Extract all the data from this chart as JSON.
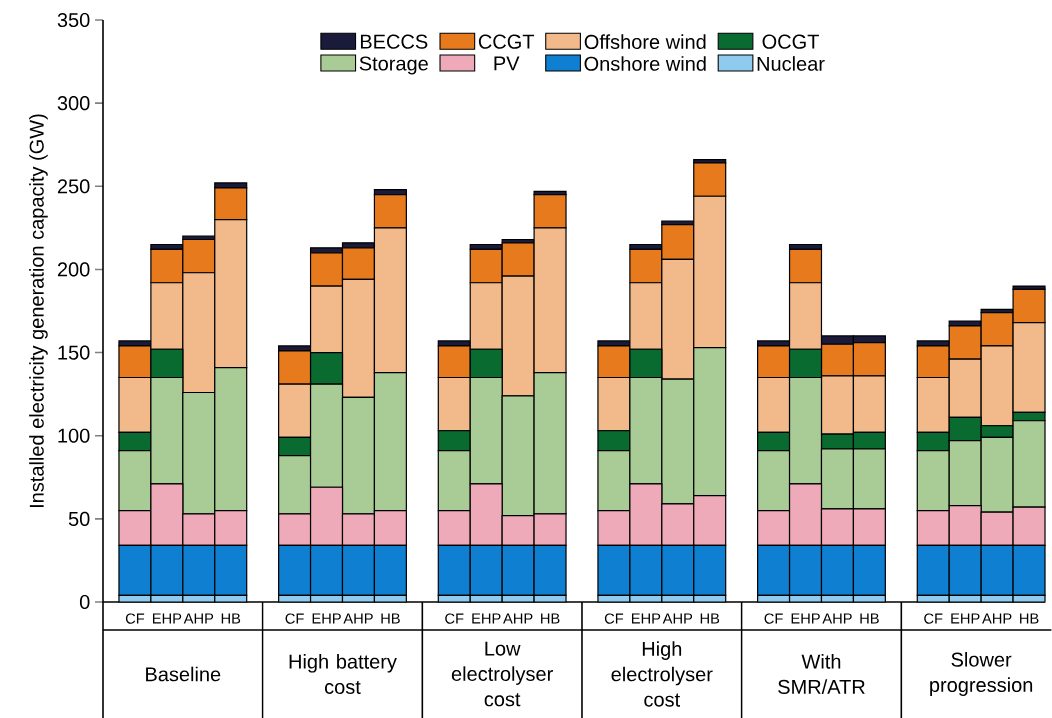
{
  "chart_data": {
    "type": "bar",
    "stacked": true,
    "ylabel": "Installed electricity generation capacity (GW)",
    "categories": [
      "CF",
      "EHP",
      "AHP",
      "HB",
      "CF",
      "EHP",
      "AHP",
      "HB",
      "CF",
      "EHP",
      "AHP",
      "HB",
      "CF",
      "EHP",
      "AHP",
      "HB",
      "CF",
      "EHP",
      "AHP",
      "HB",
      "CF",
      "EHP",
      "AHP",
      "HB"
    ],
    "annotations": [
      "Baseline",
      "High battery cost",
      "Low electrolyser cost",
      "High electrolyser cost",
      "With SMR/ATR",
      "Slower progression"
    ],
    "series": [
      {
        "name": "Nuclear",
        "color": "#8ecbee",
        "values": [
          4,
          4,
          4,
          4,
          4,
          4,
          4,
          4,
          4,
          4,
          4,
          4,
          4,
          4,
          4,
          4,
          4,
          4,
          4,
          4,
          4,
          4,
          4,
          4
        ]
      },
      {
        "name": "Onshore wind",
        "color": "#0f7fd1",
        "values": [
          30,
          30,
          30,
          30,
          30,
          30,
          30,
          30,
          30,
          30,
          30,
          30,
          30,
          30,
          30,
          30,
          30,
          30,
          30,
          30,
          30,
          30,
          30,
          30
        ]
      },
      {
        "name": "PV",
        "color": "#eeaab8",
        "values": [
          21,
          37,
          19,
          21,
          19,
          35,
          19,
          21,
          21,
          37,
          18,
          19,
          21,
          37,
          25,
          30,
          21,
          37,
          22,
          22,
          21,
          24,
          20,
          23
        ]
      },
      {
        "name": "Storage",
        "color": "#a9cc96",
        "values": [
          36,
          64,
          73,
          86,
          35,
          62,
          70,
          83,
          36,
          64,
          72,
          85,
          36,
          64,
          75,
          89,
          36,
          64,
          36,
          36,
          36,
          39,
          45,
          52
        ]
      },
      {
        "name": "OCGT",
        "color": "#0a6b30",
        "values": [
          11,
          17,
          0,
          0,
          11,
          19,
          0,
          0,
          12,
          17,
          0,
          0,
          12,
          17,
          0,
          0,
          11,
          17,
          9,
          10,
          11,
          14,
          7,
          5
        ]
      },
      {
        "name": "Offshore wind",
        "color": "#f2b98a",
        "values": [
          33,
          40,
          72,
          89,
          32,
          40,
          71,
          87,
          32,
          40,
          72,
          87,
          32,
          40,
          72,
          91,
          33,
          40,
          35,
          34,
          33,
          35,
          48,
          54
        ]
      },
      {
        "name": "CCGT",
        "color": "#e87a1e",
        "values": [
          19,
          20,
          20,
          19,
          20,
          20,
          19,
          20,
          19,
          20,
          20,
          20,
          19,
          20,
          21,
          20,
          19,
          20,
          19,
          20,
          19,
          20,
          20,
          20
        ]
      },
      {
        "name": "BECCS",
        "color": "#1a1a3a",
        "values": [
          3,
          3,
          2,
          3,
          3,
          3,
          3,
          3,
          3,
          3,
          2,
          2,
          3,
          3,
          2,
          2,
          3,
          3,
          5,
          4,
          3,
          3,
          2,
          2
        ]
      }
    ],
    "ylim": [
      0,
      350
    ],
    "yticks": [
      0,
      50,
      100,
      150,
      200,
      250,
      300,
      350
    ],
    "legend": "top"
  }
}
